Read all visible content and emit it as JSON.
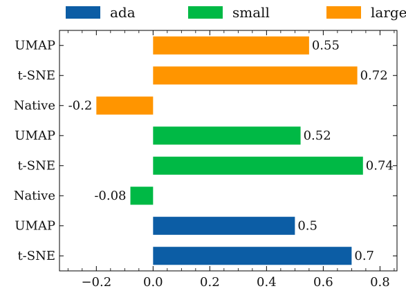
{
  "chart_data": {
    "type": "bar",
    "orientation": "horizontal",
    "categories": [
      "t-SNE",
      "UMAP",
      "Native",
      "t-SNE",
      "UMAP",
      "Native",
      "t-SNE",
      "UMAP"
    ],
    "bars": [
      {
        "label": "t-SNE",
        "value": 0.7,
        "series": "ada",
        "value_label": "0.7"
      },
      {
        "label": "UMAP",
        "value": 0.5,
        "series": "ada",
        "value_label": "0.5"
      },
      {
        "label": "Native",
        "value": -0.08,
        "series": "small",
        "value_label": "-0.08"
      },
      {
        "label": "t-SNE",
        "value": 0.74,
        "series": "small",
        "value_label": "0.74"
      },
      {
        "label": "UMAP",
        "value": 0.52,
        "series": "small",
        "value_label": "0.52"
      },
      {
        "label": "Native",
        "value": -0.2,
        "series": "large",
        "value_label": "-0.2"
      },
      {
        "label": "t-SNE",
        "value": 0.72,
        "series": "large",
        "value_label": "0.72"
      },
      {
        "label": "UMAP",
        "value": 0.55,
        "series": "large",
        "value_label": "0.55"
      }
    ],
    "series": [
      {
        "name": "ada",
        "color": "#0c5da5"
      },
      {
        "name": "small",
        "color": "#00b945"
      },
      {
        "name": "large",
        "color": "#ff9500"
      }
    ],
    "xlim": [
      -0.33,
      0.86
    ],
    "xticks": [
      -0.2,
      0.0,
      0.2,
      0.4,
      0.6,
      0.8
    ],
    "xtick_labels": [
      "−0.2",
      "0.0",
      "0.2",
      "0.4",
      "0.6",
      "0.8"
    ],
    "title": "",
    "xlabel": "",
    "ylabel": "",
    "grid": false,
    "legend_position": "top"
  }
}
